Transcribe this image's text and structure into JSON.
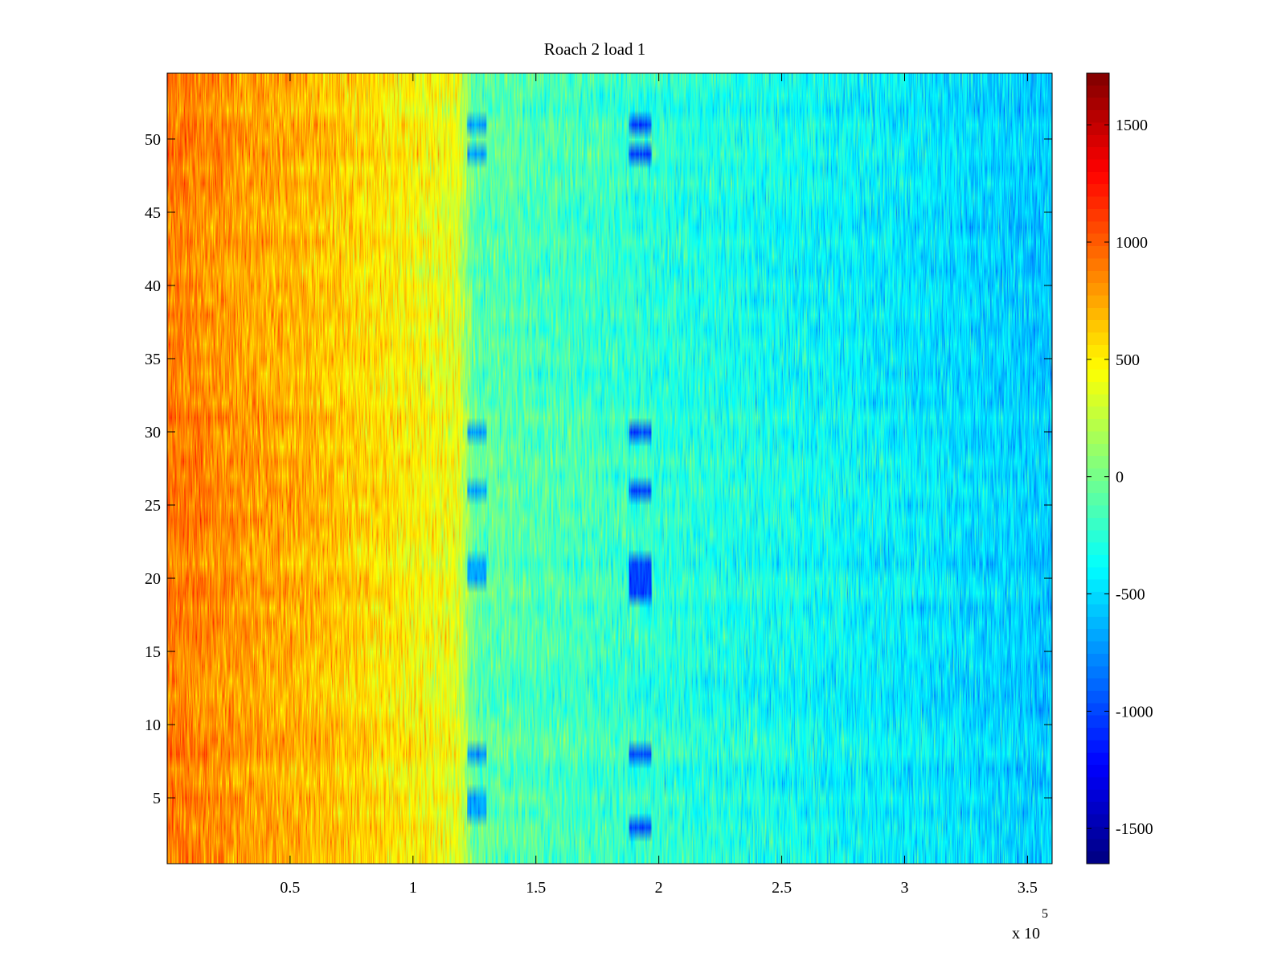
{
  "chart_data": {
    "type": "heatmap",
    "title": "Roach 2 load 1",
    "xlabel": "",
    "ylabel": "",
    "x_multiplier_label": "x 10",
    "x_multiplier_exponent": "5",
    "xlim": [
      0,
      360000
    ],
    "ylim": [
      0.5,
      54.5
    ],
    "rows": 54,
    "x_ticks": [
      {
        "value": 50000,
        "label": "0.5"
      },
      {
        "value": 100000,
        "label": "1"
      },
      {
        "value": 150000,
        "label": "1.5"
      },
      {
        "value": 200000,
        "label": "2"
      },
      {
        "value": 250000,
        "label": "2.5"
      },
      {
        "value": 300000,
        "label": "3"
      },
      {
        "value": 350000,
        "label": "3.5"
      }
    ],
    "y_ticks": [
      {
        "value": 5,
        "label": "5"
      },
      {
        "value": 10,
        "label": "10"
      },
      {
        "value": 15,
        "label": "15"
      },
      {
        "value": 20,
        "label": "20"
      },
      {
        "value": 25,
        "label": "25"
      },
      {
        "value": 30,
        "label": "30"
      },
      {
        "value": 35,
        "label": "35"
      },
      {
        "value": 40,
        "label": "40"
      },
      {
        "value": 45,
        "label": "45"
      },
      {
        "value": 50,
        "label": "50"
      }
    ],
    "colorbar": {
      "colormap": "jet",
      "clim": [
        -1650,
        1720
      ],
      "ticks": [
        {
          "value": 1500,
          "label": "1500"
        },
        {
          "value": 1000,
          "label": "1000"
        },
        {
          "value": 500,
          "label": "500"
        },
        {
          "value": 0,
          "label": "0"
        },
        {
          "value": -500,
          "label": "-500"
        },
        {
          "value": -1000,
          "label": "-1000"
        },
        {
          "value": -1500,
          "label": "-1500"
        }
      ]
    },
    "trend": {
      "x": [
        0,
        20000,
        60000,
        100000,
        118000,
        125000,
        200000,
        300000,
        360000
      ],
      "value": [
        900,
        820,
        680,
        480,
        380,
        -80,
        -250,
        -430,
        -560
      ]
    },
    "dips": [
      {
        "x_range": [
          122000,
          130000
        ],
        "rows": [
          [
            4,
            5
          ],
          [
            8,
            8
          ],
          [
            20,
            21
          ],
          [
            26,
            26
          ],
          [
            30,
            30
          ],
          [
            49,
            49
          ],
          [
            51,
            51
          ]
        ],
        "value": -700
      },
      {
        "x_range": [
          188000,
          197000
        ],
        "rows": [
          [
            3,
            3
          ],
          [
            8,
            8
          ],
          [
            19,
            21
          ],
          [
            26,
            26
          ],
          [
            30,
            30
          ],
          [
            49,
            49
          ],
          [
            51,
            51
          ]
        ],
        "value": -1000
      }
    ]
  }
}
